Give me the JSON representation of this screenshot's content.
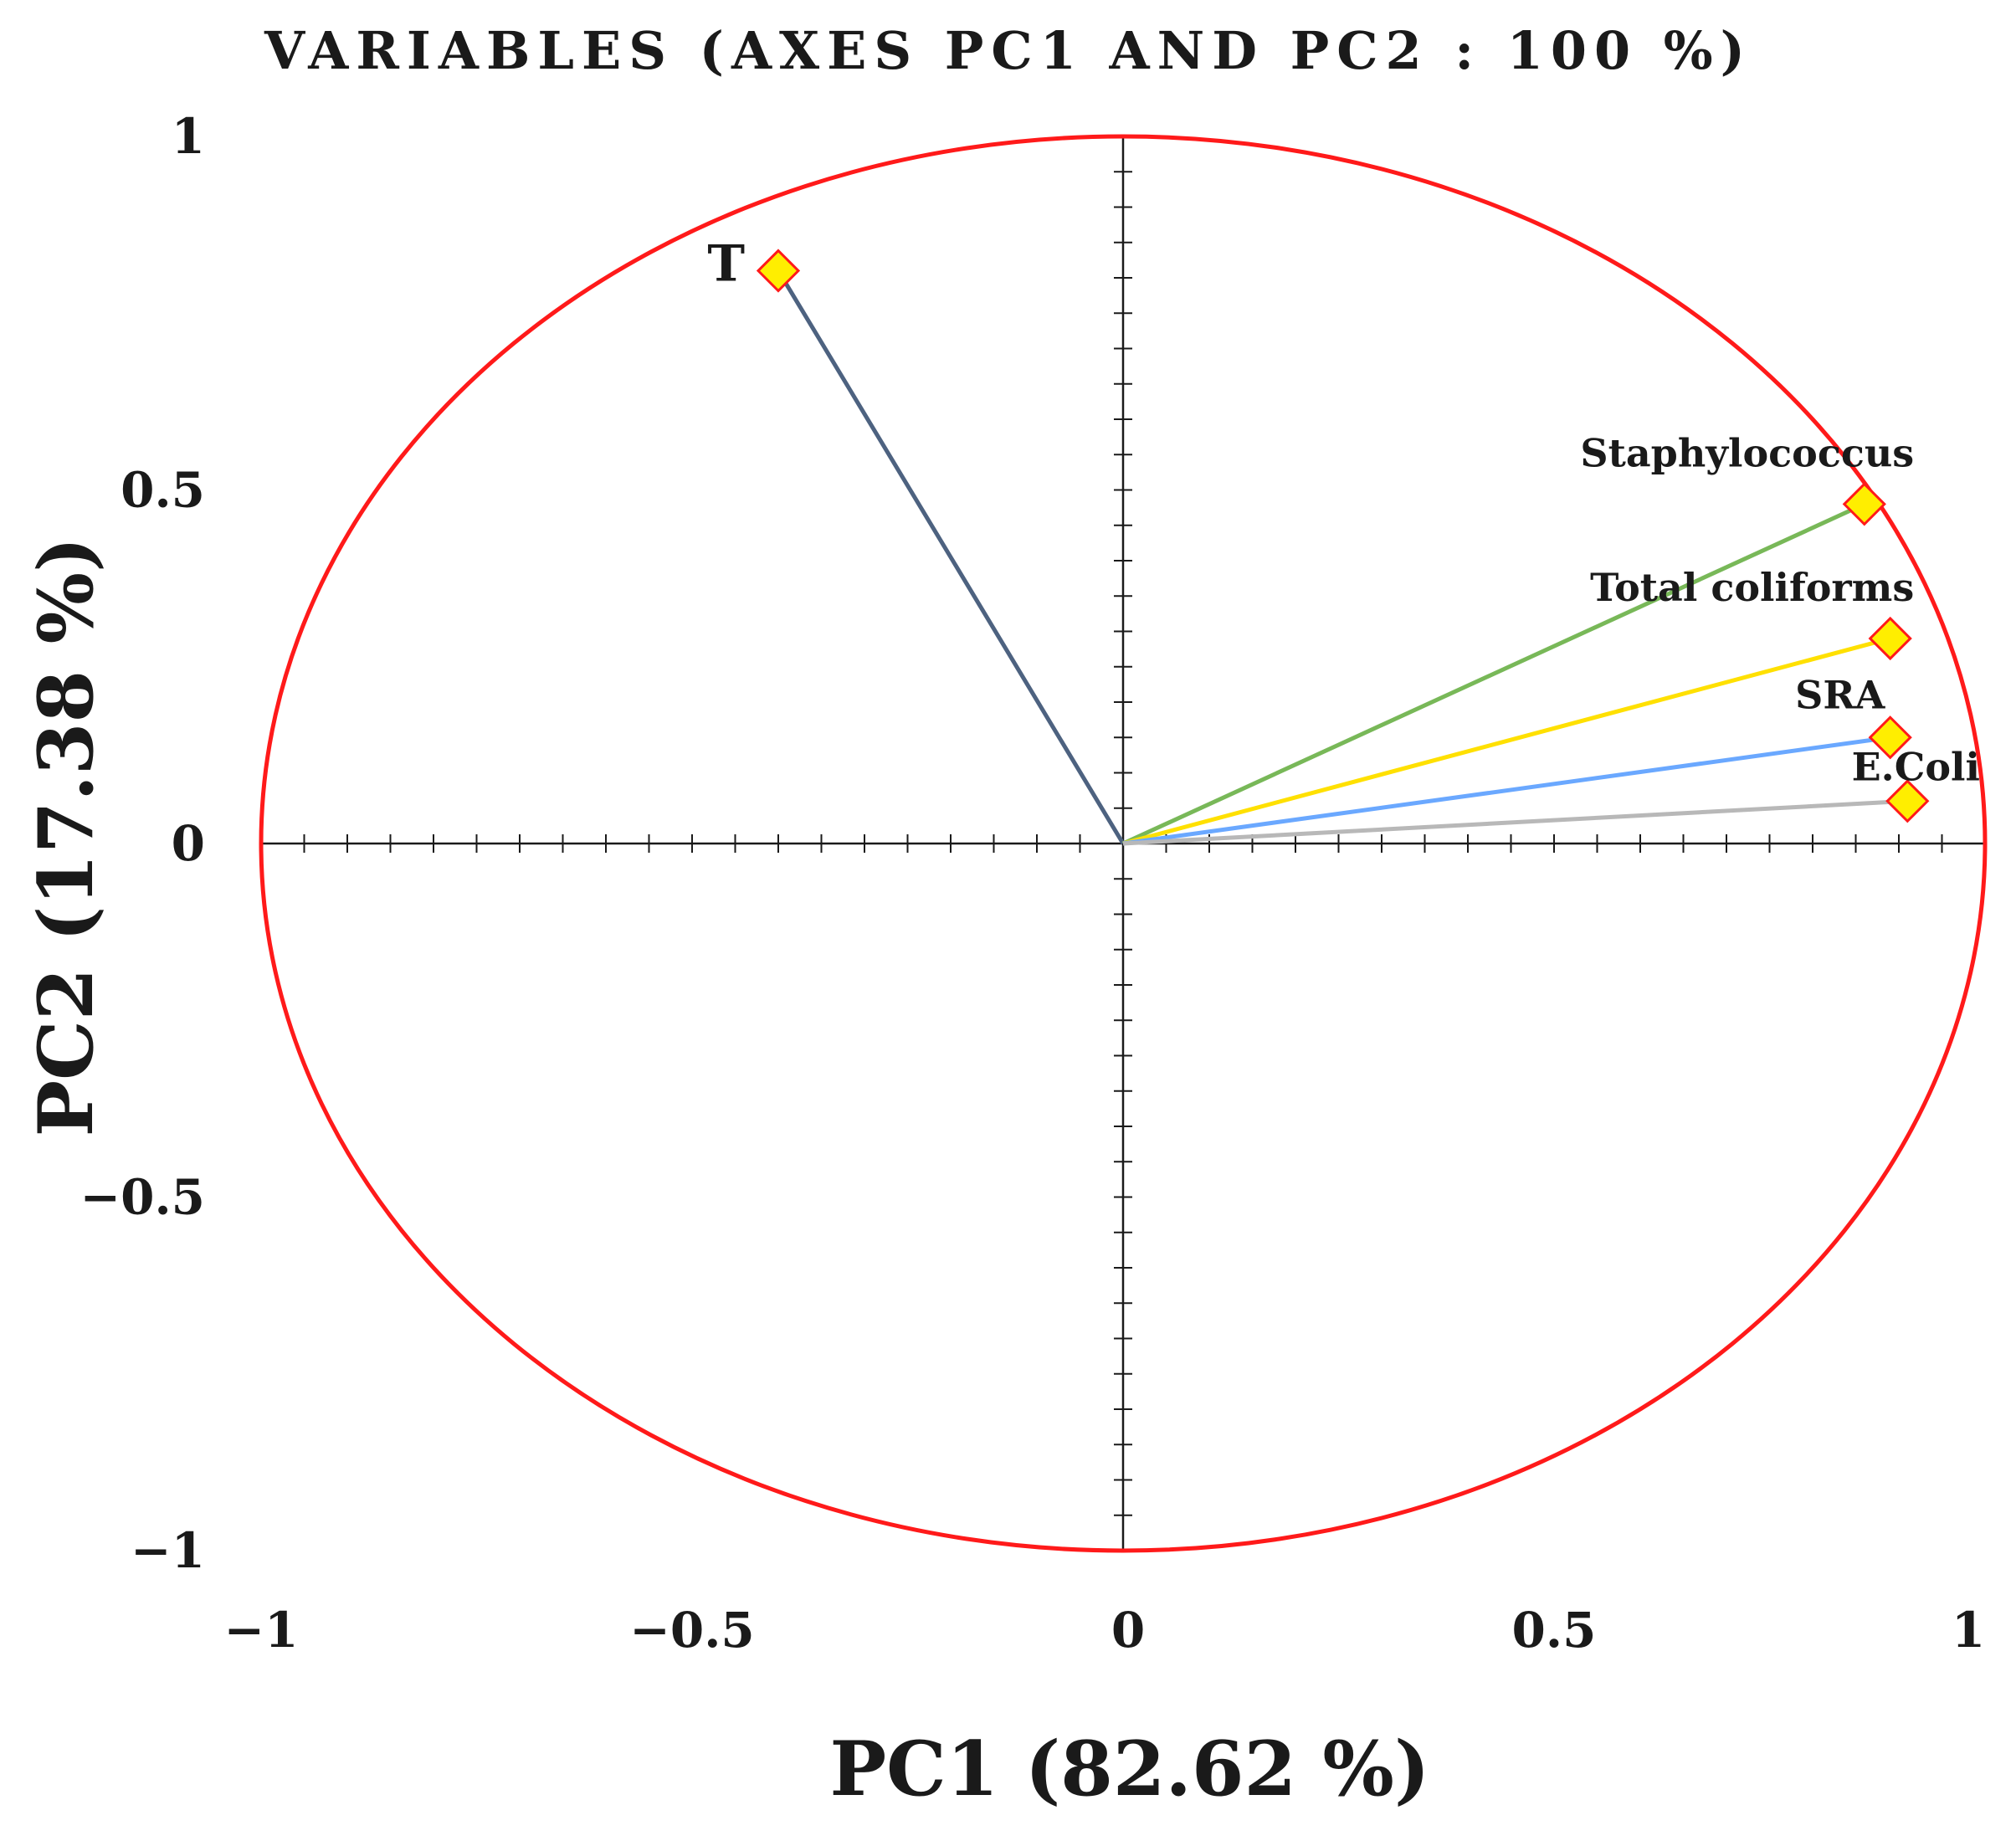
{
  "chart_data": {
    "type": "scatter",
    "subtype": "pca-correlation-circle",
    "title": "VARIABLES (AXES PC1 AND PC2 : 100 %)",
    "xlabel": "PC1 (82.62 %)",
    "ylabel": "PC2 (17.38 %)",
    "xlim": [
      -1,
      1
    ],
    "ylim": [
      -1,
      1
    ],
    "x_ticks": [
      "−1",
      "−0.5",
      "0",
      "0.5",
      "1"
    ],
    "y_ticks": [
      "1",
      "0.5",
      "0",
      "−0.5",
      "−1"
    ],
    "circle_color": "#ff1a1a",
    "marker_fill": "#ffee00",
    "marker_stroke": "#ff1a1a",
    "variables": [
      {
        "name": "T",
        "x": -0.4,
        "y": 0.81,
        "color": "#4d6280"
      },
      {
        "name": "Staphylococcus",
        "x": 0.86,
        "y": 0.48,
        "color": "#78b858"
      },
      {
        "name": "Total coliforms",
        "x": 0.89,
        "y": 0.29,
        "color": "#ffe000"
      },
      {
        "name": "SRA",
        "x": 0.89,
        "y": 0.15,
        "color": "#6aa8ff"
      },
      {
        "name": "E.Coli",
        "x": 0.91,
        "y": 0.06,
        "color": "#b8b8b8"
      }
    ]
  }
}
